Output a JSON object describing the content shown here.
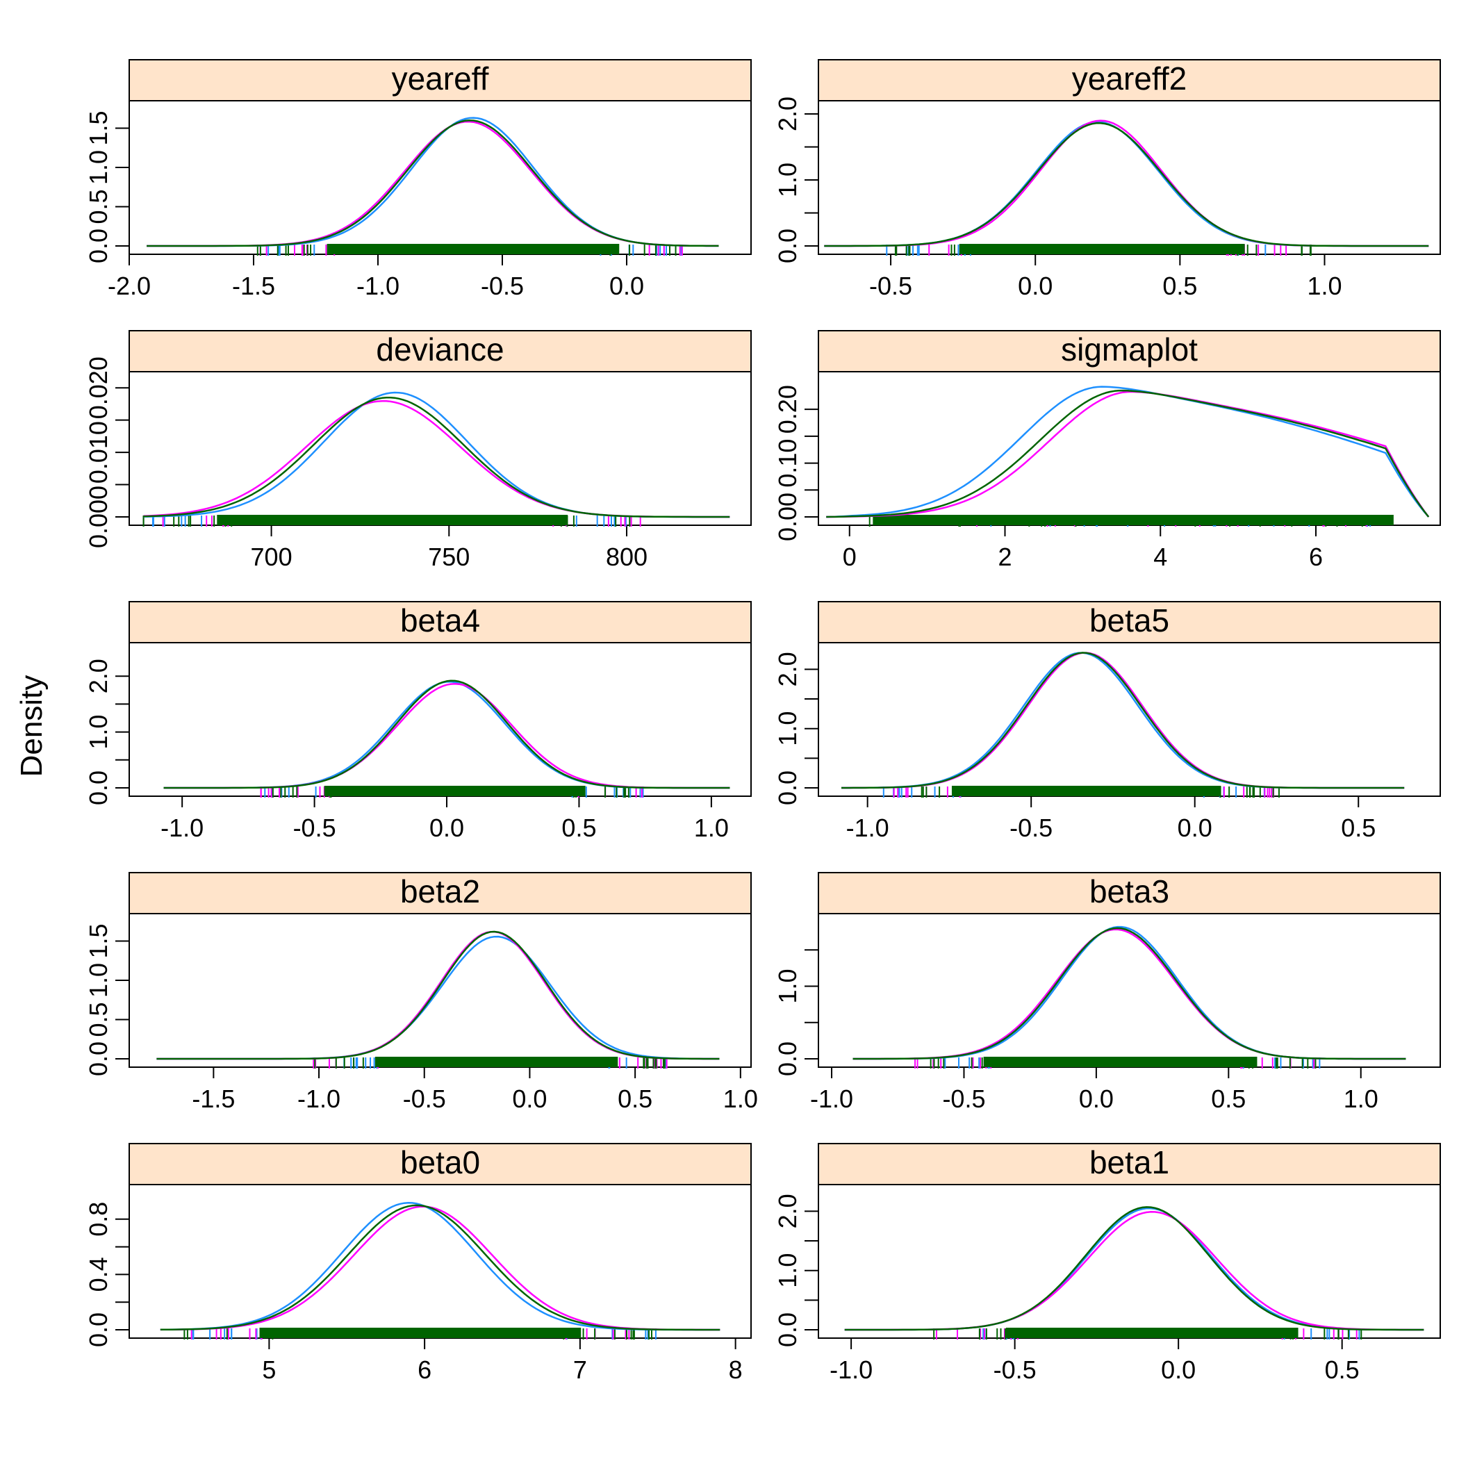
{
  "ylabel": "Density",
  "colors": {
    "chain1": "#1e90ff",
    "chain2": "#ff00ff",
    "chain3": "#006400",
    "strip": "#ffe4cb"
  },
  "chart_data": [
    {
      "type": "line",
      "title": "yeareff",
      "xlabel": "",
      "ylabel": "Density",
      "xlim": [
        -2.0,
        0.5
      ],
      "ylim": [
        0,
        1.85
      ],
      "mean": -0.63,
      "sd": 0.25,
      "peak": 1.6,
      "range": [
        -1.93,
        0.37
      ],
      "xticks": [
        -2.0,
        -1.5,
        -1.0,
        -0.5,
        0.0
      ],
      "xticklabels": [
        "-2.0",
        "-1.5",
        "-1.0",
        "-0.5",
        "0.0"
      ],
      "yticks": [
        0,
        0.5,
        1.0,
        1.5
      ],
      "yticklabels": [
        "0.0",
        "0.5",
        "1.0",
        "1.5"
      ],
      "series": [
        {
          "shift": 0.012,
          "scale": 0.98
        },
        {
          "shift": -0.008,
          "scale": 1.01
        },
        {
          "shift": 0.0,
          "scale": 1.0
        }
      ]
    },
    {
      "type": "line",
      "title": "yeareff2",
      "xlabel": "",
      "ylabel": "Density",
      "xlim": [
        -0.75,
        1.4
      ],
      "ylim": [
        0,
        2.2
      ],
      "mean": 0.22,
      "sd": 0.21,
      "peak": 1.88,
      "range": [
        -0.73,
        1.36
      ],
      "xticks": [
        -0.5,
        0.0,
        0.5,
        1.0
      ],
      "xticklabels": [
        "-0.5",
        "0.0",
        "0.5",
        "1.0"
      ],
      "yticks": [
        0,
        0.5,
        1.0,
        1.5,
        2.0
      ],
      "yticklabels": [
        "0.0",
        "",
        "1.0",
        "",
        "2.0"
      ],
      "series": [
        {
          "shift": -0.005,
          "scale": 1.0
        },
        {
          "shift": 0.006,
          "scale": 0.99
        },
        {
          "shift": 0.0,
          "scale": 1.01
        }
      ]
    },
    {
      "type": "line",
      "title": "deviance",
      "xlabel": "",
      "ylabel": "Density",
      "xlim": [
        660,
        835
      ],
      "ylim": [
        0,
        0.0225
      ],
      "mean": 733,
      "sd": 21,
      "peak": 0.0185,
      "range": [
        664,
        829
      ],
      "xticks": [
        700,
        750,
        800
      ],
      "xticklabels": [
        "700",
        "750",
        "800"
      ],
      "yticks": [
        0,
        0.005,
        0.01,
        0.015,
        0.02
      ],
      "yticklabels": [
        "0.000",
        "",
        "0.010",
        "",
        "0.020"
      ],
      "series": [
        {
          "shift": 2.0,
          "scale": 0.96
        },
        {
          "shift": -1.5,
          "scale": 1.03
        },
        {
          "shift": 0.0,
          "scale": 1.0
        }
      ]
    },
    {
      "type": "line",
      "title": "sigmaplot",
      "xlabel": "",
      "ylabel": "Density",
      "xlim": [
        -0.4,
        7.6
      ],
      "ylim": [
        0,
        0.27
      ],
      "mean": 3.5,
      "sd": 1.9,
      "peak": 0.235,
      "range": [
        -0.3,
        7.45
      ],
      "shape": "plateau",
      "xticks": [
        0,
        2,
        4,
        6
      ],
      "xticklabels": [
        "0",
        "2",
        "4",
        "6"
      ],
      "yticks": [
        0,
        0.05,
        0.1,
        0.15,
        0.2
      ],
      "yticklabels": [
        "0.00",
        "",
        "0.10",
        "",
        "0.20"
      ],
      "series": [
        {
          "shift": -0.25,
          "scale": 1.03
        },
        {
          "shift": 0.12,
          "scale": 0.99
        },
        {
          "shift": 0.0,
          "scale": 1.0
        }
      ]
    },
    {
      "type": "line",
      "title": "beta4",
      "xlabel": "",
      "ylabel": "Density",
      "xlim": [
        -1.2,
        1.15
      ],
      "ylim": [
        0,
        2.6
      ],
      "mean": 0.02,
      "sd": 0.21,
      "peak": 1.9,
      "range": [
        -1.07,
        1.07
      ],
      "xticks": [
        -1.0,
        -0.5,
        0.0,
        0.5,
        1.0
      ],
      "xticklabels": [
        "-1.0",
        "-0.5",
        "0.0",
        "0.5",
        "1.0"
      ],
      "yticks": [
        0,
        0.5,
        1.0,
        1.5,
        2.0
      ],
      "yticklabels": [
        "0.0",
        "",
        "1.0",
        "",
        "2.0"
      ],
      "series": [
        {
          "shift": -0.01,
          "scale": 1.0
        },
        {
          "shift": 0.01,
          "scale": 1.02
        },
        {
          "shift": 0.0,
          "scale": 0.99
        }
      ]
    },
    {
      "type": "line",
      "title": "beta5",
      "xlabel": "",
      "ylabel": "Density",
      "xlim": [
        -1.15,
        0.75
      ],
      "ylim": [
        0,
        2.45
      ],
      "mean": -0.34,
      "sd": 0.175,
      "peak": 2.28,
      "range": [
        -1.08,
        0.64
      ],
      "xticks": [
        -1.0,
        -0.5,
        0.0,
        0.5
      ],
      "xticklabels": [
        "-1.0",
        "-0.5",
        "0.0",
        "0.5"
      ],
      "yticks": [
        0,
        0.5,
        1.0,
        1.5,
        2.0
      ],
      "yticklabels": [
        "0.0",
        "",
        "1.0",
        "",
        "2.0"
      ],
      "series": [
        {
          "shift": -0.008,
          "scale": 1.0
        },
        {
          "shift": 0.005,
          "scale": 1.0
        },
        {
          "shift": 0.0,
          "scale": 1.0
        }
      ]
    },
    {
      "type": "line",
      "title": "beta2",
      "xlabel": "",
      "ylabel": "Density",
      "xlim": [
        -1.9,
        1.05
      ],
      "ylim": [
        0,
        1.85
      ],
      "mean": -0.17,
      "sd": 0.245,
      "peak": 1.62,
      "range": [
        -1.77,
        0.9
      ],
      "xticks": [
        -1.5,
        -1.0,
        -0.5,
        0.0,
        0.5,
        1.0
      ],
      "xticklabels": [
        "-1.5",
        "-1.0",
        "-0.5",
        "0.0",
        "0.5",
        "1.0"
      ],
      "yticks": [
        0,
        0.5,
        1.0,
        1.5
      ],
      "yticklabels": [
        "0.0",
        "0.5",
        "1.0",
        "1.5"
      ],
      "series": [
        {
          "shift": 0.012,
          "scale": 1.04
        },
        {
          "shift": -0.006,
          "scale": 1.0
        },
        {
          "shift": 0.0,
          "scale": 1.0
        }
      ]
    },
    {
      "type": "line",
      "title": "beta3",
      "xlabel": "",
      "ylabel": "Density",
      "xlim": [
        -1.05,
        1.3
      ],
      "ylim": [
        0,
        2.0
      ],
      "mean": 0.08,
      "sd": 0.22,
      "peak": 1.8,
      "range": [
        -0.92,
        1.17
      ],
      "xticks": [
        -1.0,
        -0.5,
        0.0,
        0.5,
        1.0
      ],
      "xticklabels": [
        "-1.0",
        "-0.5",
        "0.0",
        "0.5",
        "1.0"
      ],
      "yticks": [
        0,
        0.5,
        1.0,
        1.5
      ],
      "yticklabels": [
        "0.0",
        "",
        "1.0",
        ""
      ],
      "series": [
        {
          "shift": 0.008,
          "scale": 0.99
        },
        {
          "shift": -0.006,
          "scale": 1.01
        },
        {
          "shift": 0.0,
          "scale": 1.0
        }
      ]
    },
    {
      "type": "line",
      "title": "beta0",
      "xlabel": "",
      "ylabel": "Density",
      "xlim": [
        4.1,
        8.1
      ],
      "ylim": [
        0,
        1.05
      ],
      "mean": 5.95,
      "sd": 0.44,
      "peak": 0.9,
      "range": [
        4.3,
        7.9
      ],
      "xticks": [
        5,
        6,
        7,
        8
      ],
      "xticklabels": [
        "5",
        "6",
        "7",
        "8"
      ],
      "yticks": [
        0,
        0.2,
        0.4,
        0.6,
        0.8
      ],
      "yticklabels": [
        "0.0",
        "",
        "0.4",
        "",
        "0.8"
      ],
      "series": [
        {
          "shift": -0.05,
          "scale": 0.98
        },
        {
          "shift": 0.04,
          "scale": 1.01
        },
        {
          "shift": 0.0,
          "scale": 1.0
        }
      ]
    },
    {
      "type": "line",
      "title": "beta1",
      "xlabel": "",
      "ylabel": "Density",
      "xlim": [
        -1.1,
        0.8
      ],
      "ylim": [
        0,
        2.45
      ],
      "mean": -0.09,
      "sd": 0.19,
      "peak": 2.05,
      "range": [
        -1.02,
        0.75
      ],
      "xticks": [
        -1.0,
        -0.5,
        0.0,
        0.5
      ],
      "xticklabels": [
        "-1.0",
        "-0.5",
        "0.0",
        "0.5"
      ],
      "yticks": [
        0,
        0.5,
        1.0,
        1.5,
        2.0
      ],
      "yticklabels": [
        "0.0",
        "",
        "1.0",
        "",
        "2.0"
      ],
      "series": [
        {
          "shift": 0.0,
          "scale": 1.0
        },
        {
          "shift": 0.01,
          "scale": 1.03
        },
        {
          "shift": -0.005,
          "scale": 0.99
        }
      ]
    }
  ]
}
